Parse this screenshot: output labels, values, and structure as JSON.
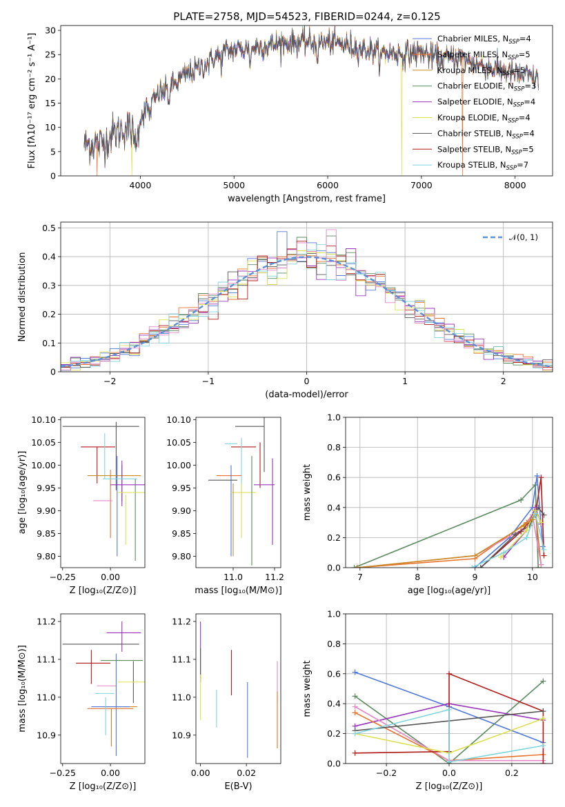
{
  "figure_title": "PLATE=2758, MJD=54523, FIBERID=0244, z=0.125",
  "colors": {
    "Chabrier MILES": "#4f78d8",
    "Salpeter MILES": "#e8702a",
    "Kroupa MILES": "#c98a1d",
    "Chabrier ELODIE": "#5a8a5e",
    "Salpeter ELODIE": "#9933bb",
    "Kroupa ELODIE": "#dbe04a",
    "Chabrier STELIB": "#555555",
    "Salpeter STELIB": "#b01818",
    "Kroupa STELIB": "#7ed4dc",
    "pink": "#e587c4",
    "gaussian": "#5b8fd6"
  },
  "chart_data": [
    {
      "id": "spectrum",
      "type": "line",
      "title": "PLATE=2758, MJD=54523, FIBERID=0244, z=0.125",
      "xlabel": "wavelength [Angstrom, rest frame]",
      "ylabel": "Flux [fλ10⁻¹⁷ erg cm⁻² s⁻¹ A⁻¹]",
      "xlim": [
        3150,
        8400
      ],
      "ylim": [
        0,
        31
      ],
      "xticks": [
        "4000",
        "5000",
        "6000",
        "7000",
        "8000"
      ],
      "yticks": [
        "0",
        "5",
        "10",
        "15",
        "20",
        "25",
        "30"
      ],
      "x_range_of_data": [
        3400,
        8250
      ],
      "envelope": {
        "x": [
          3400,
          3600,
          3700,
          3850,
          3950,
          4000,
          4100,
          4200,
          4300,
          4400,
          4500,
          4600,
          4700,
          4800,
          4900,
          5000,
          5200,
          5400,
          5600,
          5800,
          6000,
          6200,
          6400,
          6600,
          6800,
          7000,
          7200,
          7400,
          7600,
          7800,
          8000,
          8250
        ],
        "y": [
          6.5,
          6.8,
          8.5,
          10,
          9,
          12,
          14.5,
          17,
          18,
          19.5,
          21,
          22,
          23,
          24.5,
          25.5,
          26,
          26.5,
          27,
          27.5,
          27.5,
          27.5,
          27,
          26,
          25.5,
          25,
          25.5,
          24,
          24.5,
          23,
          22,
          21,
          20
        ]
      },
      "series": [
        {
          "name": "Chabrier MILES",
          "legend": "Chabrier MILES, N_SSP=4"
        },
        {
          "name": "Salpeter MILES",
          "legend": "Salpeter MILES, N_SSP=5"
        },
        {
          "name": "Kroupa MILES",
          "legend": "Kroupa MILES, N_SSP=5"
        },
        {
          "name": "Chabrier ELODIE",
          "legend": "Chabrier ELODIE, N_SSP=3"
        },
        {
          "name": "Salpeter ELODIE",
          "legend": "Salpeter ELODIE, N_SSP=4"
        },
        {
          "name": "Kroupa ELODIE",
          "legend": "Kroupa ELODIE, N_SSP=4"
        },
        {
          "name": "Chabrier STELIB",
          "legend": "Chabrier STELIB, N_SSP=4"
        },
        {
          "name": "Salpeter STELIB",
          "legend": "Salpeter STELIB, N_SSP=5"
        },
        {
          "name": "Kroupa STELIB",
          "legend": "Kroupa STELIB, N_SSP=7"
        }
      ],
      "dropouts": [
        {
          "series": "Salpeter MILES",
          "x": 3540
        },
        {
          "series": "Kroupa ELODIE",
          "x": 3910
        },
        {
          "series": "Kroupa ELODIE",
          "x": 6790
        },
        {
          "series": "Salpeter MILES",
          "x": 7440
        }
      ],
      "legend_position": "upper right"
    },
    {
      "id": "residuals",
      "type": "histogram",
      "xlabel": "(data-model)/error",
      "ylabel": "Normed distribution",
      "xlim": [
        -2.5,
        2.5
      ],
      "ylim": [
        0,
        0.52
      ],
      "xticks": [
        -2,
        -1,
        0,
        1,
        2
      ],
      "yticks": [
        0.0,
        0.1,
        0.2,
        0.3,
        0.4,
        0.5
      ],
      "grid": true,
      "bin_width": 0.1,
      "gaussian_legend": "𝒩(0, 1)",
      "legend_position": "upper right"
    },
    {
      "id": "age_vs_Z",
      "type": "errorbar",
      "xlabel": "Z [log₁₀(Z/Z⊙)]",
      "ylabel": "age  [log₁₀(age/yr)]",
      "xlim": [
        -0.26,
        0.18
      ],
      "ylim": [
        9.775,
        10.105
      ],
      "xticks": [
        "-0.25",
        "0.00"
      ],
      "yticks": [
        "9.80",
        "9.85",
        "9.90",
        "9.95",
        "10.00",
        "10.05",
        "10.10"
      ],
      "points": [
        {
          "series": "Chabrier STELIB",
          "x": -0.05,
          "xerr": 0.2,
          "y": 10.085,
          "yerr": 0.0
        },
        {
          "series": "Chabrier STELIB",
          "x": 0.03,
          "xerr": 0.0,
          "y": 10.02,
          "yerr": 0.075
        },
        {
          "series": "Salpeter STELIB",
          "x": -0.065,
          "xerr": 0.09,
          "y": 10.04,
          "yerr": 0.0
        },
        {
          "series": "Salpeter STELIB",
          "x": -0.07,
          "xerr": 0.0,
          "y": 10.0,
          "yerr": 0.04
        },
        {
          "series": "Kroupa STELIB",
          "x": -0.03,
          "xerr": 0.0,
          "y": 10.02,
          "yerr": 0.05
        },
        {
          "series": "Kroupa MILES",
          "x": 0.02,
          "xerr": 0.14,
          "y": 9.977,
          "yerr": 0.0
        },
        {
          "series": "Salpeter MILES",
          "x": 0.0,
          "xerr": 0.0,
          "y": 9.915,
          "yerr": 0.075
        },
        {
          "series": "Chabrier MILES",
          "x": 0.035,
          "xerr": 0.0,
          "y": 9.91,
          "yerr": 0.11
        },
        {
          "series": "Chabrier ELODIE",
          "x": 0.06,
          "xerr": 0.0,
          "y": 9.96,
          "yerr": 0.04
        },
        {
          "series": "Chabrier ELODIE",
          "x": 0.13,
          "xerr": 0.0,
          "y": 9.88,
          "yerr": 0.09
        },
        {
          "series": "Salpeter ELODIE",
          "x": 0.1,
          "xerr": 0.1,
          "y": 9.957,
          "yerr": 0.0
        },
        {
          "series": "Salpeter ELODIE",
          "x": 0.06,
          "xerr": 0.0,
          "y": 9.96,
          "yerr": 0.05
        },
        {
          "series": "Kroupa ELODIE",
          "x": 0.11,
          "xerr": 0.07,
          "y": 9.94,
          "yerr": 0.0
        },
        {
          "series": "Kroupa ELODIE",
          "x": 0.08,
          "xerr": 0.0,
          "y": 9.88,
          "yerr": 0.055
        },
        {
          "series": "pink",
          "x": -0.04,
          "xerr": 0.05,
          "y": 9.922,
          "yerr": 0.0
        },
        {
          "series": "Kroupa STELIB",
          "x": 0.05,
          "xerr": 0.09,
          "y": 9.97,
          "yerr": 0.0
        }
      ]
    },
    {
      "id": "age_vs_mass",
      "type": "errorbar",
      "xlabel": "mass [log₁₀(M/M⊙)]",
      "ylabel": "",
      "xlim": [
        10.82,
        11.23
      ],
      "ylim": [
        9.775,
        10.105
      ],
      "xticks": [
        "11.0",
        "11.2"
      ],
      "yticks": [
        "9.80",
        "9.85",
        "9.90",
        "9.95",
        "10.00",
        "10.05",
        "10.10"
      ],
      "points": [
        {
          "series": "Chabrier STELIB",
          "x": 11.08,
          "xerr": 0.07,
          "y": 10.085,
          "yerr": 0.0
        },
        {
          "series": "Chabrier STELIB",
          "x": 11.15,
          "xerr": 0.0,
          "y": 10.045,
          "yerr": 0.06
        },
        {
          "series": "Salpeter STELIB",
          "x": 11.05,
          "xerr": 0.06,
          "y": 10.04,
          "yerr": 0.0
        },
        {
          "series": "Salpeter STELIB",
          "x": 11.13,
          "xerr": 0.0,
          "y": 10.0,
          "yerr": 0.05
        },
        {
          "series": "Kroupa STELIB",
          "x": 10.99,
          "xerr": 0.03,
          "y": 10.047,
          "yerr": 0.0
        },
        {
          "series": "Kroupa STELIB",
          "x": 11.04,
          "xerr": 0.0,
          "y": 10.0,
          "yerr": 0.06
        },
        {
          "series": "Salpeter MILES",
          "x": 10.98,
          "xerr": 0.06,
          "y": 9.977,
          "yerr": 0.0
        },
        {
          "series": "Chabrier MILES",
          "x": 10.99,
          "xerr": 0.0,
          "y": 9.9,
          "yerr": 0.1
        },
        {
          "series": "Chabrier STELIB",
          "x": 10.95,
          "xerr": 0.07,
          "y": 9.967,
          "yerr": 0.0
        },
        {
          "series": "Salpeter ELODIE",
          "x": 11.15,
          "xerr": 0.05,
          "y": 9.957,
          "yerr": 0.0
        },
        {
          "series": "Salpeter ELODIE",
          "x": 11.19,
          "xerr": 0.0,
          "y": 9.92,
          "yerr": 0.095
        },
        {
          "series": "Kroupa ELODIE",
          "x": 11.05,
          "xerr": 0.06,
          "y": 9.94,
          "yerr": 0.0
        },
        {
          "series": "Kroupa ELODIE",
          "x": 11.04,
          "xerr": 0.0,
          "y": 9.9,
          "yerr": 0.06
        },
        {
          "series": "Chabrier ELODIE",
          "x": 11.09,
          "xerr": 0.0,
          "y": 9.9,
          "yerr": 0.12
        },
        {
          "series": "Kroupa MILES",
          "x": 11.0,
          "xerr": 0.0,
          "y": 9.88,
          "yerr": 0.08
        }
      ]
    },
    {
      "id": "mass_weight_vs_age",
      "type": "line",
      "xlabel": "age  [log₁₀(age/yr)]",
      "ylabel": "mass weight",
      "xlim": [
        6.75,
        10.35
      ],
      "ylim": [
        0,
        1.0
      ],
      "xticks": [
        7,
        8,
        9,
        10
      ],
      "yticks": [
        "0.0",
        "0.2",
        "0.4",
        "0.6",
        "0.8",
        "1.0"
      ],
      "grid": true,
      "series": [
        {
          "name": "Chabrier ELODIE",
          "x": [
            6.9,
            9.8,
            10.05,
            10.1
          ],
          "y": [
            0.0,
            0.45,
            0.55,
            0.0
          ]
        },
        {
          "name": "Chabrier MILES",
          "x": [
            9.0,
            9.6,
            10.0,
            10.08,
            10.18
          ],
          "y": [
            0.0,
            0.2,
            0.4,
            0.61,
            0.14
          ]
        },
        {
          "name": "Salpeter MILES",
          "x": [
            6.95,
            9.0,
            9.9,
            10.05,
            10.15
          ],
          "y": [
            0.0,
            0.06,
            0.3,
            0.38,
            0.02
          ]
        },
        {
          "name": "pink",
          "x": [
            6.95,
            9.0,
            9.85,
            10.0,
            10.15
          ],
          "y": [
            0.0,
            0.08,
            0.26,
            0.35,
            0.02
          ]
        },
        {
          "name": "Salpeter STELIB",
          "x": [
            9.1,
            9.8,
            10.05,
            10.15,
            10.2
          ],
          "y": [
            0.0,
            0.24,
            0.35,
            0.6,
            0.08
          ]
        },
        {
          "name": "Chabrier STELIB",
          "x": [
            9.1,
            9.7,
            9.95,
            10.1,
            10.2
          ],
          "y": [
            0.0,
            0.22,
            0.28,
            0.4,
            0.35
          ]
        },
        {
          "name": "Salpeter ELODIE",
          "x": [
            9.5,
            9.9,
            10.05,
            10.15
          ],
          "y": [
            0.07,
            0.25,
            0.4,
            0.29
          ]
        },
        {
          "name": "Kroupa ELODIE",
          "x": [
            9.45,
            9.9,
            10.05,
            10.15
          ],
          "y": [
            0.07,
            0.25,
            0.38,
            0.3
          ]
        },
        {
          "name": "Kroupa STELIB",
          "x": [
            8.95,
            9.5,
            9.9,
            10.05,
            10.2
          ],
          "y": [
            0.0,
            0.1,
            0.2,
            0.36,
            0.12
          ]
        },
        {
          "name": "Kroupa MILES",
          "x": [
            6.95,
            9.0,
            9.85,
            10.0
          ],
          "y": [
            0.0,
            0.08,
            0.28,
            0.32
          ]
        }
      ]
    },
    {
      "id": "mass_vs_Z",
      "type": "errorbar",
      "xlabel": "Z [log₁₀(Z/Z⊙)]",
      "ylabel": "mass [log₁₀(M/M⊙)]",
      "xlim": [
        -0.26,
        0.18
      ],
      "ylim": [
        10.825,
        11.22
      ],
      "xticks": [
        "-0.25",
        "0.00"
      ],
      "yticks": [
        "10.9",
        "11.0",
        "11.1",
        "11.2"
      ],
      "points": [
        {
          "series": "Chabrier STELIB",
          "x": -0.05,
          "xerr": 0.2,
          "y": 11.14,
          "yerr": 0.0
        },
        {
          "series": "Salpeter ELODIE",
          "x": 0.07,
          "xerr": 0.09,
          "y": 11.17,
          "yerr": 0.0
        },
        {
          "series": "Salpeter ELODIE",
          "x": 0.06,
          "xerr": 0.0,
          "y": 11.16,
          "yerr": 0.04
        },
        {
          "series": "Salpeter STELIB",
          "x": -0.09,
          "xerr": 0.09,
          "y": 11.09,
          "yerr": 0.0
        },
        {
          "series": "Salpeter STELIB",
          "x": -0.1,
          "xerr": 0.0,
          "y": 11.08,
          "yerr": 0.045
        },
        {
          "series": "Chabrier ELODIE",
          "x": 0.06,
          "xerr": 0.11,
          "y": 11.097,
          "yerr": 0.0
        },
        {
          "series": "Chabrier STELIB",
          "x": 0.12,
          "xerr": 0.0,
          "y": 11.04,
          "yerr": 0.055
        },
        {
          "series": "Kroupa ELODIE",
          "x": 0.11,
          "xerr": 0.07,
          "y": 11.04,
          "yerr": 0.0
        },
        {
          "series": "pink",
          "x": -0.02,
          "xerr": 0.05,
          "y": 11.03,
          "yerr": 0.0
        },
        {
          "series": "Kroupa STELIB",
          "x": -0.03,
          "xerr": 0.05,
          "y": 11.01,
          "yerr": 0.0
        },
        {
          "series": "Chabrier MILES",
          "x": 0.03,
          "xerr": 0.0,
          "y": 10.98,
          "yerr": 0.135
        },
        {
          "series": "Kroupa MILES",
          "x": 0.05,
          "xerr": 0.09,
          "y": 10.975,
          "yerr": 0.0
        },
        {
          "series": "Salpeter MILES",
          "x": 0.0,
          "xerr": 0.12,
          "y": 10.97,
          "yerr": 0.0
        },
        {
          "series": "Salpeter MILES",
          "x": 0.005,
          "xerr": 0.0,
          "y": 10.92,
          "yerr": 0.05
        },
        {
          "series": "Chabrier MILES",
          "x": 0.0,
          "xerr": 0.1,
          "y": 10.975,
          "yerr": 0.0
        },
        {
          "series": "Kroupa STELIB",
          "x": -0.025,
          "xerr": 0.0,
          "y": 10.95,
          "yerr": 0.05
        }
      ]
    },
    {
      "id": "mass_vs_EBV",
      "type": "errorbar",
      "xlabel": "E(B-V)",
      "ylabel": "",
      "xlim": [
        -0.002,
        0.035
      ],
      "ylim": [
        10.825,
        11.22
      ],
      "xticks": [
        "0.00",
        "0.02"
      ],
      "yticks": [
        "10.9",
        "11.0",
        "11.1",
        "11.2"
      ],
      "points": [
        {
          "series": "Salpeter ELODIE",
          "x": 0.0,
          "xerr": 0.0,
          "y": 11.12,
          "yerr": 0.08
        },
        {
          "series": "Chabrier STELIB",
          "x": 0.0,
          "xerr": 0.0,
          "y": 11.09,
          "yerr": 0.04
        },
        {
          "series": "Kroupa ELODIE",
          "x": 0.0,
          "xerr": 0.0,
          "y": 11.0,
          "yerr": 0.06
        },
        {
          "series": "Salpeter STELIB",
          "x": 0.0135,
          "xerr": 0.0,
          "y": 11.065,
          "yerr": 0.06
        },
        {
          "series": "Kroupa STELIB",
          "x": 0.007,
          "xerr": 0.0,
          "y": 10.97,
          "yerr": 0.05
        },
        {
          "series": "Chabrier MILES",
          "x": 0.0205,
          "xerr": 0.0,
          "y": 10.94,
          "yerr": 0.1
        },
        {
          "series": "pink",
          "x": 0.0335,
          "xerr": 0.0,
          "y": 11.04,
          "yerr": 0.055
        },
        {
          "series": "Salpeter MILES",
          "x": 0.0335,
          "xerr": 0.0,
          "y": 10.94,
          "yerr": 0.075
        }
      ]
    },
    {
      "id": "mass_weight_vs_Z",
      "type": "line",
      "xlabel": "Z [log₁₀(Z/Z⊙)]",
      "ylabel": "mass weight",
      "xlim": [
        -0.33,
        0.33
      ],
      "ylim": [
        0,
        1.0
      ],
      "xticks": [
        "-0.2",
        "0.0",
        "0.2"
      ],
      "yticks": [
        "0.0",
        "0.2",
        "0.4",
        "0.6",
        "0.8",
        "1.0"
      ],
      "grid": true,
      "series": [
        {
          "name": "Chabrier MILES",
          "x": [
            -0.3,
            0.0,
            0.3
          ],
          "y": [
            0.61,
            0.38,
            0.14
          ]
        },
        {
          "name": "Chabrier ELODIE",
          "x": [
            -0.3,
            0.0,
            0.3
          ],
          "y": [
            0.45,
            0.0,
            0.55
          ]
        },
        {
          "name": "Salpeter ELODIE",
          "x": [
            -0.3,
            0.0,
            0.3
          ],
          "y": [
            0.25,
            0.4,
            0.29
          ]
        },
        {
          "name": "Salpeter MILES",
          "x": [
            -0.3,
            0.0,
            0.3
          ],
          "y": [
            0.34,
            0.02,
            0.06
          ]
        },
        {
          "name": "pink",
          "x": [
            -0.3,
            0.0,
            0.3
          ],
          "y": [
            0.38,
            0.02,
            0.02
          ]
        },
        {
          "name": "Salpeter STELIB",
          "x": [
            -0.3,
            0.0,
            0.0,
            0.3,
            0.3
          ],
          "y": [
            0.07,
            0.08,
            0.6,
            0.35,
            0.0
          ]
        },
        {
          "name": "Chabrier STELIB",
          "x": [
            -0.3,
            0.3
          ],
          "y": [
            0.22,
            0.35
          ]
        },
        {
          "name": "Kroupa ELODIE",
          "x": [
            -0.3,
            0.0,
            0.3
          ],
          "y": [
            0.2,
            0.07,
            0.3
          ]
        },
        {
          "name": "Kroupa STELIB",
          "x": [
            -0.3,
            0.0,
            0.0,
            0.3
          ],
          "y": [
            0.2,
            0.36,
            0.01,
            0.12
          ]
        }
      ]
    }
  ]
}
